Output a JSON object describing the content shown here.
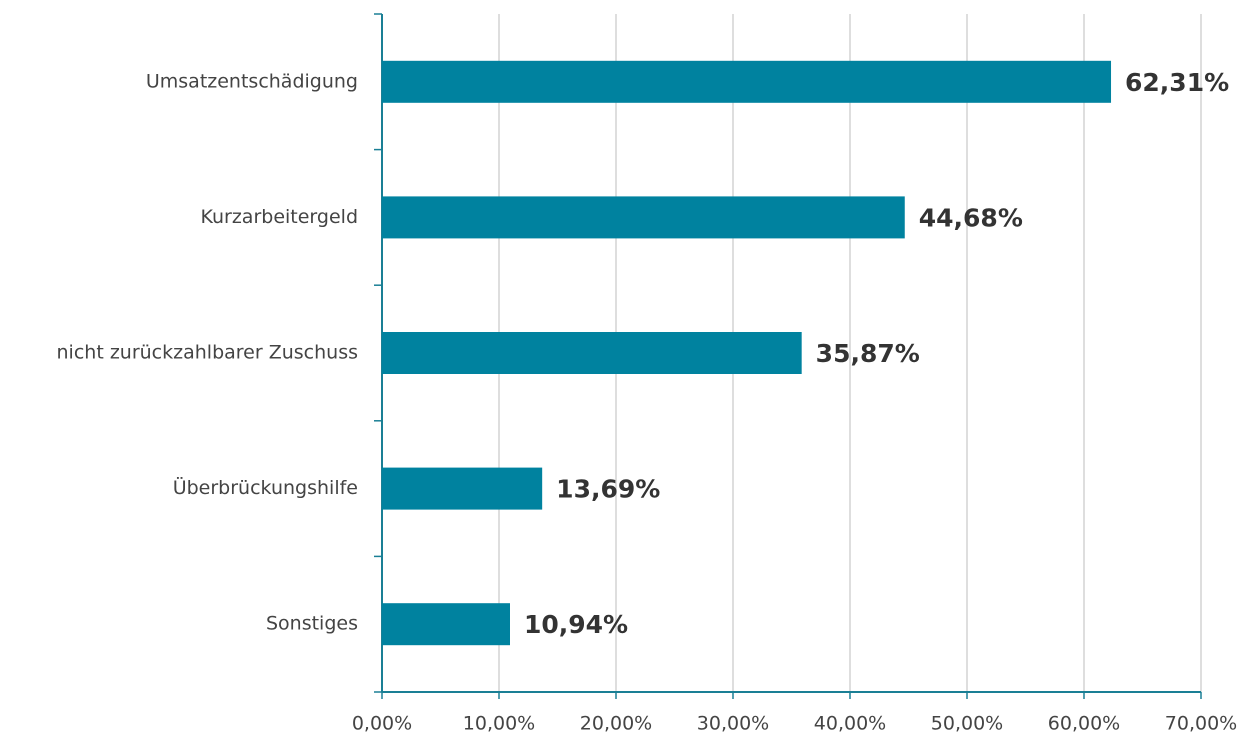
{
  "chart_data": {
    "type": "bar",
    "orientation": "horizontal",
    "categories": [
      "Umsatzentschädigung",
      "Kurzarbeitergeld",
      "nicht zurückzahlbarer Zuschuss",
      "Überbrückungshilfe",
      "Sonstiges"
    ],
    "values": [
      62.31,
      44.68,
      35.87,
      13.69,
      10.94
    ],
    "value_labels": [
      "62,31%",
      "44,68%",
      "35,87%",
      "13,69%",
      "10,94%"
    ],
    "color": "#00829f",
    "xlim": [
      0,
      70
    ],
    "xticks": [
      {
        "value": 0,
        "label": "0,00%"
      },
      {
        "value": 10,
        "label": "10,00%"
      },
      {
        "value": 20,
        "label": "20,00%"
      },
      {
        "value": 30,
        "label": "30,00%"
      },
      {
        "value": 40,
        "label": "40,00%"
      },
      {
        "value": 50,
        "label": "50,00%"
      },
      {
        "value": 60,
        "label": "60,00%"
      },
      {
        "value": 70,
        "label": "70,00%"
      }
    ],
    "grid": true
  }
}
